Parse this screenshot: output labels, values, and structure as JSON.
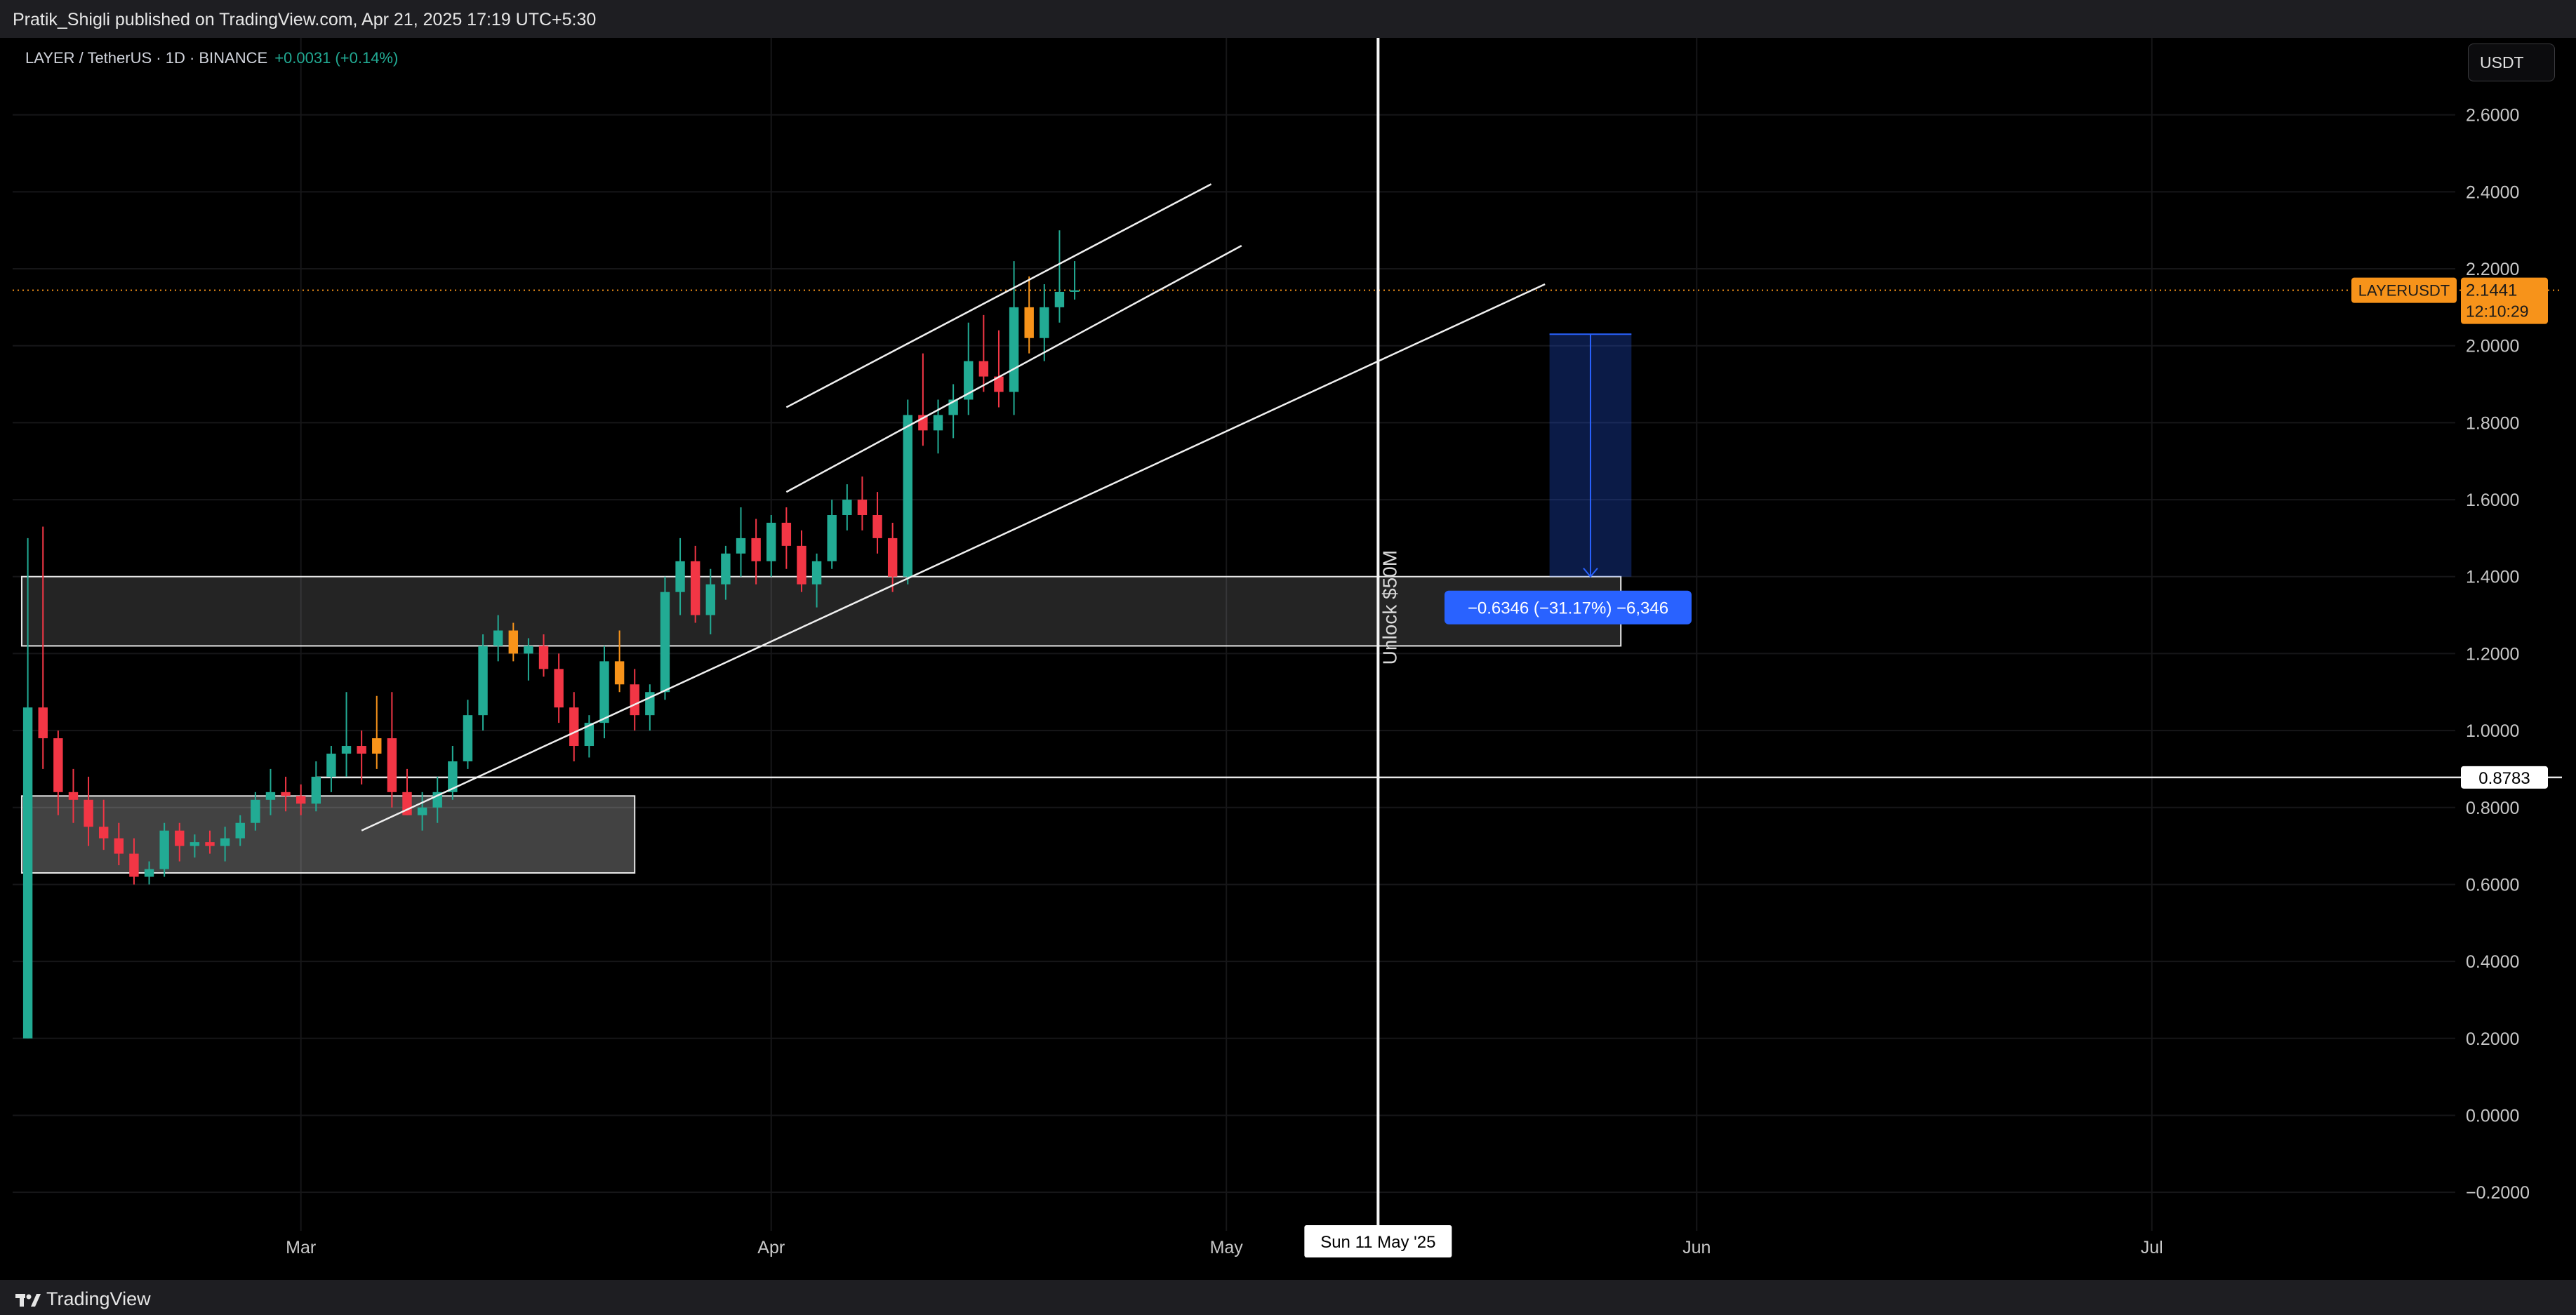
{
  "header": {
    "published": "Pratik_Shigli published on TradingView.com, Apr 21, 2025 17:19 UTC+5:30"
  },
  "legend": {
    "symbol": "LAYER / TetherUS · 1D · BINANCE",
    "change": "+0.0031 (+0.14%)"
  },
  "currency_button": "USDT",
  "footer": {
    "brand": "TradingView"
  },
  "colors": {
    "up": "#22ab94",
    "down": "#f23645",
    "orange": "#f7931a",
    "measure": "#2962ff"
  },
  "chart_data": {
    "type": "candlestick",
    "symbol": "LAYERUSDT",
    "ylim": [
      -0.3,
      2.8
    ],
    "y_ticks": [
      -0.2,
      0.0,
      0.2,
      0.4,
      0.6,
      0.8,
      1.0,
      1.2,
      1.4,
      1.6,
      1.8,
      2.0,
      2.2,
      2.4,
      2.6
    ],
    "y_tick_labels": [
      "−0.2000",
      "0.0000",
      "0.2000",
      "0.4000",
      "0.6000",
      "0.8000",
      "1.0000",
      "1.2000",
      "1.4000",
      "1.6000",
      "1.8000",
      "2.0000",
      "2.2000",
      "2.4000",
      "2.6000"
    ],
    "x_range": [
      "2025-02-10",
      "2025-07-21"
    ],
    "x_ticks": [
      {
        "date": "2025-03-01",
        "label": "Mar"
      },
      {
        "date": "2025-04-01",
        "label": "Apr"
      },
      {
        "date": "2025-05-01",
        "label": "May"
      },
      {
        "date": "2025-06-01",
        "label": "Jun"
      },
      {
        "date": "2025-07-01",
        "label": "Jul"
      }
    ],
    "candles": [
      {
        "date": "2025-02-11",
        "o": 0.2,
        "h": 1.5,
        "l": 0.2,
        "c": 1.06
      },
      {
        "date": "2025-02-12",
        "o": 1.06,
        "h": 1.53,
        "l": 0.9,
        "c": 0.98
      },
      {
        "date": "2025-02-13",
        "o": 0.98,
        "h": 1.0,
        "l": 0.78,
        "c": 0.84
      },
      {
        "date": "2025-02-14",
        "o": 0.84,
        "h": 0.9,
        "l": 0.76,
        "c": 0.82
      },
      {
        "date": "2025-02-15",
        "o": 0.82,
        "h": 0.88,
        "l": 0.7,
        "c": 0.75
      },
      {
        "date": "2025-02-16",
        "o": 0.75,
        "h": 0.82,
        "l": 0.69,
        "c": 0.72
      },
      {
        "date": "2025-02-17",
        "o": 0.72,
        "h": 0.76,
        "l": 0.65,
        "c": 0.68
      },
      {
        "date": "2025-02-18",
        "o": 0.68,
        "h": 0.72,
        "l": 0.6,
        "c": 0.62
      },
      {
        "date": "2025-02-19",
        "o": 0.62,
        "h": 0.66,
        "l": 0.6,
        "c": 0.64
      },
      {
        "date": "2025-02-20",
        "o": 0.64,
        "h": 0.76,
        "l": 0.62,
        "c": 0.74
      },
      {
        "date": "2025-02-21",
        "o": 0.74,
        "h": 0.76,
        "l": 0.66,
        "c": 0.7
      },
      {
        "date": "2025-02-22",
        "o": 0.7,
        "h": 0.73,
        "l": 0.67,
        "c": 0.71
      },
      {
        "date": "2025-02-23",
        "o": 0.71,
        "h": 0.74,
        "l": 0.68,
        "c": 0.7
      },
      {
        "date": "2025-02-24",
        "o": 0.7,
        "h": 0.75,
        "l": 0.66,
        "c": 0.72
      },
      {
        "date": "2025-02-25",
        "o": 0.72,
        "h": 0.78,
        "l": 0.7,
        "c": 0.76
      },
      {
        "date": "2025-02-26",
        "o": 0.76,
        "h": 0.84,
        "l": 0.74,
        "c": 0.82
      },
      {
        "date": "2025-02-27",
        "o": 0.82,
        "h": 0.9,
        "l": 0.78,
        "c": 0.84
      },
      {
        "date": "2025-02-28",
        "o": 0.84,
        "h": 0.88,
        "l": 0.79,
        "c": 0.83
      },
      {
        "date": "2025-03-01",
        "o": 0.83,
        "h": 0.86,
        "l": 0.78,
        "c": 0.81
      },
      {
        "date": "2025-03-02",
        "o": 0.81,
        "h": 0.92,
        "l": 0.79,
        "c": 0.88
      },
      {
        "date": "2025-03-03",
        "o": 0.88,
        "h": 0.96,
        "l": 0.84,
        "c": 0.94
      },
      {
        "date": "2025-03-04",
        "o": 0.94,
        "h": 1.1,
        "l": 0.88,
        "c": 0.96
      },
      {
        "date": "2025-03-05",
        "o": 0.96,
        "h": 1.0,
        "l": 0.86,
        "c": 0.94
      },
      {
        "date": "2025-03-06",
        "o": 0.94,
        "h": 1.09,
        "l": 0.9,
        "c": 0.98
      },
      {
        "date": "2025-03-07",
        "o": 0.98,
        "h": 1.1,
        "l": 0.8,
        "c": 0.84
      },
      {
        "date": "2025-03-08",
        "o": 0.84,
        "h": 0.9,
        "l": 0.78,
        "c": 0.78
      },
      {
        "date": "2025-03-09",
        "o": 0.78,
        "h": 0.84,
        "l": 0.74,
        "c": 0.8
      },
      {
        "date": "2025-03-10",
        "o": 0.8,
        "h": 0.88,
        "l": 0.76,
        "c": 0.84
      },
      {
        "date": "2025-03-11",
        "o": 0.84,
        "h": 0.96,
        "l": 0.82,
        "c": 0.92
      },
      {
        "date": "2025-03-12",
        "o": 0.92,
        "h": 1.08,
        "l": 0.9,
        "c": 1.04
      },
      {
        "date": "2025-03-13",
        "o": 1.04,
        "h": 1.25,
        "l": 1.0,
        "c": 1.22
      },
      {
        "date": "2025-03-14",
        "o": 1.22,
        "h": 1.3,
        "l": 1.18,
        "c": 1.26
      },
      {
        "date": "2025-03-15",
        "o": 1.26,
        "h": 1.28,
        "l": 1.18,
        "c": 1.2
      },
      {
        "date": "2025-03-16",
        "o": 1.2,
        "h": 1.24,
        "l": 1.13,
        "c": 1.22
      },
      {
        "date": "2025-03-17",
        "o": 1.22,
        "h": 1.25,
        "l": 1.14,
        "c": 1.16
      },
      {
        "date": "2025-03-18",
        "o": 1.16,
        "h": 1.2,
        "l": 1.02,
        "c": 1.06
      },
      {
        "date": "2025-03-19",
        "o": 1.06,
        "h": 1.1,
        "l": 0.92,
        "c": 0.96
      },
      {
        "date": "2025-03-20",
        "o": 0.96,
        "h": 1.04,
        "l": 0.93,
        "c": 1.02
      },
      {
        "date": "2025-03-21",
        "o": 1.02,
        "h": 1.22,
        "l": 0.98,
        "c": 1.18
      },
      {
        "date": "2025-03-22",
        "o": 1.18,
        "h": 1.26,
        "l": 1.1,
        "c": 1.12
      },
      {
        "date": "2025-03-23",
        "o": 1.12,
        "h": 1.16,
        "l": 1.0,
        "c": 1.04
      },
      {
        "date": "2025-03-24",
        "o": 1.04,
        "h": 1.12,
        "l": 1.0,
        "c": 1.1
      },
      {
        "date": "2025-03-25",
        "o": 1.1,
        "h": 1.4,
        "l": 1.08,
        "c": 1.36
      },
      {
        "date": "2025-03-26",
        "o": 1.36,
        "h": 1.5,
        "l": 1.3,
        "c": 1.44
      },
      {
        "date": "2025-03-27",
        "o": 1.44,
        "h": 1.48,
        "l": 1.28,
        "c": 1.3
      },
      {
        "date": "2025-03-28",
        "o": 1.3,
        "h": 1.42,
        "l": 1.25,
        "c": 1.38
      },
      {
        "date": "2025-03-29",
        "o": 1.38,
        "h": 1.48,
        "l": 1.34,
        "c": 1.46
      },
      {
        "date": "2025-03-30",
        "o": 1.46,
        "h": 1.58,
        "l": 1.4,
        "c": 1.5
      },
      {
        "date": "2025-03-31",
        "o": 1.5,
        "h": 1.55,
        "l": 1.38,
        "c": 1.44
      },
      {
        "date": "2025-04-01",
        "o": 1.44,
        "h": 1.56,
        "l": 1.4,
        "c": 1.54
      },
      {
        "date": "2025-04-02",
        "o": 1.54,
        "h": 1.58,
        "l": 1.42,
        "c": 1.48
      },
      {
        "date": "2025-04-03",
        "o": 1.48,
        "h": 1.52,
        "l": 1.36,
        "c": 1.38
      },
      {
        "date": "2025-04-04",
        "o": 1.38,
        "h": 1.46,
        "l": 1.32,
        "c": 1.44
      },
      {
        "date": "2025-04-05",
        "o": 1.44,
        "h": 1.6,
        "l": 1.42,
        "c": 1.56
      },
      {
        "date": "2025-04-06",
        "o": 1.56,
        "h": 1.64,
        "l": 1.52,
        "c": 1.6
      },
      {
        "date": "2025-04-07",
        "o": 1.6,
        "h": 1.66,
        "l": 1.52,
        "c": 1.56
      },
      {
        "date": "2025-04-08",
        "o": 1.56,
        "h": 1.62,
        "l": 1.46,
        "c": 1.5
      },
      {
        "date": "2025-04-09",
        "o": 1.5,
        "h": 1.54,
        "l": 1.36,
        "c": 1.4
      },
      {
        "date": "2025-04-10",
        "o": 1.4,
        "h": 1.86,
        "l": 1.38,
        "c": 1.82
      },
      {
        "date": "2025-04-11",
        "o": 1.82,
        "h": 1.98,
        "l": 1.74,
        "c": 1.78
      },
      {
        "date": "2025-04-12",
        "o": 1.78,
        "h": 1.86,
        "l": 1.72,
        "c": 1.82
      },
      {
        "date": "2025-04-13",
        "o": 1.82,
        "h": 1.9,
        "l": 1.76,
        "c": 1.86
      },
      {
        "date": "2025-04-14",
        "o": 1.86,
        "h": 2.06,
        "l": 1.82,
        "c": 1.96
      },
      {
        "date": "2025-04-15",
        "o": 1.96,
        "h": 2.08,
        "l": 1.88,
        "c": 1.92
      },
      {
        "date": "2025-04-16",
        "o": 1.92,
        "h": 2.04,
        "l": 1.84,
        "c": 1.88
      },
      {
        "date": "2025-04-17",
        "o": 1.88,
        "h": 2.22,
        "l": 1.82,
        "c": 2.1
      },
      {
        "date": "2025-04-18",
        "o": 2.1,
        "h": 2.18,
        "l": 1.98,
        "c": 2.02
      },
      {
        "date": "2025-04-19",
        "o": 2.02,
        "h": 2.16,
        "l": 1.96,
        "c": 2.1
      },
      {
        "date": "2025-04-20",
        "o": 2.1,
        "h": 2.3,
        "l": 2.06,
        "c": 2.14
      },
      {
        "date": "2025-04-21",
        "o": 2.14,
        "h": 2.22,
        "l": 2.12,
        "c": 2.1441
      }
    ],
    "orange_candle_dates": [
      "2025-03-06",
      "2025-03-15",
      "2025-03-22",
      "2025-04-18"
    ],
    "last_price": {
      "label": "LAYERUSDT",
      "value": "2.1441",
      "countdown": "12:10:29",
      "y": 2.1441
    },
    "horizontal_line": {
      "y": 0.8783,
      "label": "0.8783"
    },
    "vertical_line": {
      "date": "2025-05-11",
      "label": "Sun 11 May '25",
      "annotation": "Unlock $50M"
    },
    "zones": [
      {
        "from": "2025-02-11",
        "to": "2025-03-23",
        "y1": 0.63,
        "y2": 0.83
      },
      {
        "from": "2025-02-11",
        "to": "2025-05-27",
        "y1": 1.22,
        "y2": 1.4
      }
    ],
    "trend_lines": [
      {
        "from": [
          "2025-04-02",
          1.84
        ],
        "to": [
          "2025-04-30",
          2.42
        ]
      },
      {
        "from": [
          "2025-04-02",
          1.62
        ],
        "to": [
          "2025-05-02",
          2.26
        ]
      },
      {
        "from": [
          "2025-03-05",
          0.74
        ],
        "to": [
          "2025-05-22",
          2.16
        ]
      }
    ],
    "measure": {
      "date": "2025-05-25",
      "from_y": 2.03,
      "to_y": 1.4,
      "label": "−0.6346 (−31.17%) −6,346"
    }
  }
}
